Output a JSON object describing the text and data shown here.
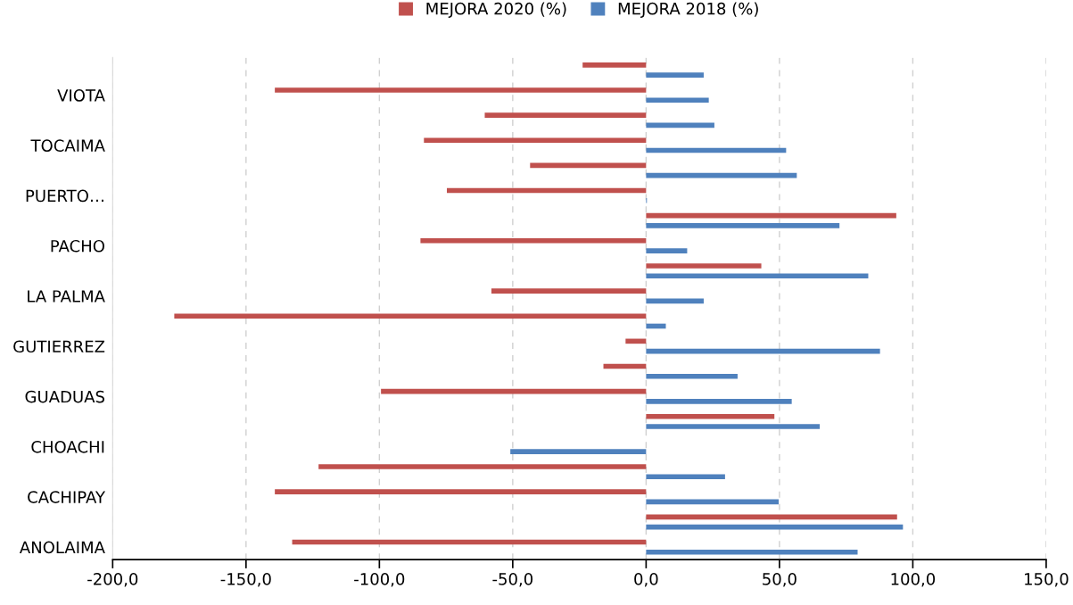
{
  "chart_data": {
    "type": "bar",
    "orientation": "horizontal",
    "categories": [
      null,
      "VIOTA",
      null,
      "TOCAIMA",
      null,
      "PUERTO…",
      null,
      "PACHO",
      null,
      "LA PALMA",
      null,
      "GUTIERREZ",
      null,
      "GUADUAS",
      null,
      "CHOACHI",
      null,
      "CACHIPAY",
      null,
      "ANOLAIMA"
    ],
    "series": [
      {
        "name": "MEJORA 2020 (%)",
        "color": "#c0504d",
        "values": [
          -23.8,
          -139.2,
          -60.5,
          -83.3,
          -43.5,
          -74.7,
          93.8,
          -84.6,
          43.2,
          -58.0,
          -176.9,
          -7.7,
          -16.0,
          -99.4,
          48.1,
          null,
          -122.8,
          -139.2,
          94.1,
          -132.7
        ]
      },
      {
        "name": "MEJORA 2018 (%)",
        "color": "#4f81bd",
        "values": [
          21.6,
          23.5,
          25.6,
          52.5,
          56.5,
          0.3,
          72.5,
          15.4,
          83.3,
          21.6,
          7.4,
          87.7,
          34.3,
          54.6,
          65.1,
          -50.9,
          29.6,
          49.7,
          96.3,
          79.3
        ]
      }
    ],
    "xlim": [
      -200,
      150
    ],
    "xticks": [
      {
        "value": -200,
        "label": "-200,0"
      },
      {
        "value": -150,
        "label": "-150,0"
      },
      {
        "value": -100,
        "label": "-100,0"
      },
      {
        "value": -50,
        "label": "-50,0"
      },
      {
        "value": 0,
        "label": "0,0"
      },
      {
        "value": 50,
        "label": "50,0"
      },
      {
        "value": 100,
        "label": "100,0"
      },
      {
        "value": 150,
        "label": "150,0"
      }
    ],
    "grid": "x",
    "legend": "top"
  }
}
